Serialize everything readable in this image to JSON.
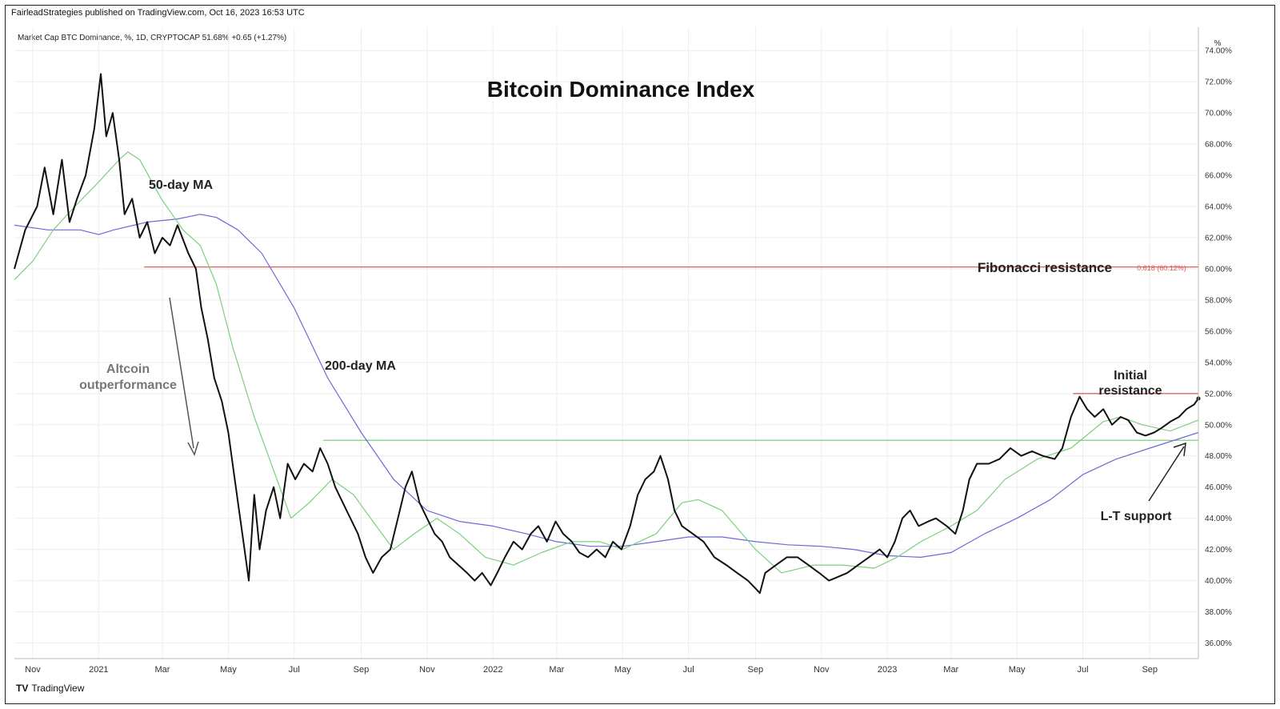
{
  "header": {
    "publisher": "FairleadStrategies published on TradingView.com, Oct 16, 2023 16:53 UTC",
    "legend": "Market Cap BTC Dominance, %, 1D, CRYPTOCAP  51.68%  +0.65 (+1.27%)",
    "unit_label": "%"
  },
  "footer": {
    "logo_text": "TV",
    "brand": "TradingView"
  },
  "colors": {
    "price": "#111111",
    "ma50": "#7ccf7c",
    "ma200": "#6a6ad8",
    "fib": "#e06060",
    "support": "#7ccf7c",
    "arrow": "#333333",
    "grid": "#eeeeee"
  },
  "chart_data": {
    "type": "line",
    "title": "Bitcoin Dominance Index",
    "xlabel": "",
    "ylabel": "",
    "x_range": [
      "2020-10-15",
      "2023-10-16"
    ],
    "ylim": [
      35,
      75.5
    ],
    "grid": true,
    "y_ticks": [
      "36.00%",
      "38.00%",
      "40.00%",
      "42.00%",
      "44.00%",
      "46.00%",
      "48.00%",
      "50.00%",
      "52.00%",
      "54.00%",
      "56.00%",
      "58.00%",
      "60.00%",
      "62.00%",
      "64.00%",
      "66.00%",
      "68.00%",
      "70.00%",
      "72.00%",
      "74.00%"
    ],
    "x_ticks": [
      {
        "label": "Nov",
        "date": "2020-11-01"
      },
      {
        "label": "2021",
        "date": "2021-01-01"
      },
      {
        "label": "Mar",
        "date": "2021-03-01"
      },
      {
        "label": "May",
        "date": "2021-05-01"
      },
      {
        "label": "Jul",
        "date": "2021-07-01"
      },
      {
        "label": "Sep",
        "date": "2021-09-01"
      },
      {
        "label": "Nov",
        "date": "2021-11-01"
      },
      {
        "label": "2022",
        "date": "2022-01-01"
      },
      {
        "label": "Mar",
        "date": "2022-03-01"
      },
      {
        "label": "May",
        "date": "2022-05-01"
      },
      {
        "label": "Jul",
        "date": "2022-07-01"
      },
      {
        "label": "Sep",
        "date": "2022-09-01"
      },
      {
        "label": "Nov",
        "date": "2022-11-01"
      },
      {
        "label": "2023",
        "date": "2023-01-01"
      },
      {
        "label": "Mar",
        "date": "2023-03-01"
      },
      {
        "label": "May",
        "date": "2023-05-01"
      },
      {
        "label": "Jul",
        "date": "2023-07-01"
      },
      {
        "label": "Sep",
        "date": "2023-09-01"
      }
    ],
    "series": [
      {
        "key": "price",
        "points": [
          [
            "2020-10-15",
            60.0
          ],
          [
            "2020-10-25",
            62.5
          ],
          [
            "2020-11-05",
            64.0
          ],
          [
            "2020-11-12",
            66.5
          ],
          [
            "2020-11-20",
            63.5
          ],
          [
            "2020-11-28",
            67.0
          ],
          [
            "2020-12-05",
            63.0
          ],
          [
            "2020-12-12",
            64.5
          ],
          [
            "2020-12-20",
            66.0
          ],
          [
            "2020-12-28",
            69.0
          ],
          [
            "2021-01-03",
            72.5
          ],
          [
            "2021-01-08",
            68.5
          ],
          [
            "2021-01-14",
            70.0
          ],
          [
            "2021-01-20",
            67.0
          ],
          [
            "2021-01-25",
            63.5
          ],
          [
            "2021-02-01",
            64.5
          ],
          [
            "2021-02-08",
            62.0
          ],
          [
            "2021-02-15",
            63.0
          ],
          [
            "2021-02-22",
            61.0
          ],
          [
            "2021-03-01",
            62.0
          ],
          [
            "2021-03-08",
            61.5
          ],
          [
            "2021-03-15",
            62.8
          ],
          [
            "2021-03-25",
            61.0
          ],
          [
            "2021-04-01",
            60.0
          ],
          [
            "2021-04-06",
            57.5
          ],
          [
            "2021-04-12",
            55.5
          ],
          [
            "2021-04-18",
            53.0
          ],
          [
            "2021-04-25",
            51.5
          ],
          [
            "2021-05-01",
            49.5
          ],
          [
            "2021-05-06",
            47.0
          ],
          [
            "2021-05-10",
            45.0
          ],
          [
            "2021-05-15",
            42.5
          ],
          [
            "2021-05-20",
            40.0
          ],
          [
            "2021-05-25",
            45.5
          ],
          [
            "2021-05-30",
            42.0
          ],
          [
            "2021-06-05",
            44.5
          ],
          [
            "2021-06-12",
            46.0
          ],
          [
            "2021-06-18",
            44.0
          ],
          [
            "2021-06-25",
            47.5
          ],
          [
            "2021-07-02",
            46.5
          ],
          [
            "2021-07-10",
            47.5
          ],
          [
            "2021-07-18",
            47.0
          ],
          [
            "2021-07-25",
            48.5
          ],
          [
            "2021-08-01",
            47.5
          ],
          [
            "2021-08-08",
            46.0
          ],
          [
            "2021-08-15",
            45.0
          ],
          [
            "2021-08-22",
            44.0
          ],
          [
            "2021-08-29",
            43.0
          ],
          [
            "2021-09-05",
            41.5
          ],
          [
            "2021-09-12",
            40.5
          ],
          [
            "2021-09-20",
            41.5
          ],
          [
            "2021-09-28",
            42.0
          ],
          [
            "2021-10-05",
            44.0
          ],
          [
            "2021-10-12",
            46.0
          ],
          [
            "2021-10-18",
            47.0
          ],
          [
            "2021-10-25",
            45.0
          ],
          [
            "2021-11-01",
            44.0
          ],
          [
            "2021-11-08",
            43.0
          ],
          [
            "2021-11-15",
            42.5
          ],
          [
            "2021-11-22",
            41.5
          ],
          [
            "2021-11-30",
            41.0
          ],
          [
            "2021-12-08",
            40.5
          ],
          [
            "2021-12-15",
            40.0
          ],
          [
            "2021-12-22",
            40.5
          ],
          [
            "2021-12-30",
            39.7
          ],
          [
            "2022-01-05",
            40.5
          ],
          [
            "2022-01-12",
            41.5
          ],
          [
            "2022-01-20",
            42.5
          ],
          [
            "2022-01-28",
            42.0
          ],
          [
            "2022-02-05",
            43.0
          ],
          [
            "2022-02-12",
            43.5
          ],
          [
            "2022-02-20",
            42.5
          ],
          [
            "2022-02-28",
            43.8
          ],
          [
            "2022-03-07",
            43.0
          ],
          [
            "2022-03-15",
            42.5
          ],
          [
            "2022-03-22",
            41.8
          ],
          [
            "2022-03-30",
            41.5
          ],
          [
            "2022-04-07",
            42.0
          ],
          [
            "2022-04-15",
            41.5
          ],
          [
            "2022-04-22",
            42.5
          ],
          [
            "2022-04-30",
            42.0
          ],
          [
            "2022-05-08",
            43.5
          ],
          [
            "2022-05-15",
            45.5
          ],
          [
            "2022-05-22",
            46.5
          ],
          [
            "2022-05-30",
            47.0
          ],
          [
            "2022-06-05",
            48.0
          ],
          [
            "2022-06-12",
            46.5
          ],
          [
            "2022-06-18",
            44.5
          ],
          [
            "2022-06-25",
            43.5
          ],
          [
            "2022-07-05",
            43.0
          ],
          [
            "2022-07-15",
            42.5
          ],
          [
            "2022-07-25",
            41.5
          ],
          [
            "2022-08-05",
            41.0
          ],
          [
            "2022-08-15",
            40.5
          ],
          [
            "2022-08-25",
            40.0
          ],
          [
            "2022-09-01",
            39.5
          ],
          [
            "2022-09-05",
            39.2
          ],
          [
            "2022-09-10",
            40.5
          ],
          [
            "2022-09-20",
            41.0
          ],
          [
            "2022-09-30",
            41.5
          ],
          [
            "2022-10-10",
            41.5
          ],
          [
            "2022-10-20",
            41.0
          ],
          [
            "2022-10-30",
            40.5
          ],
          [
            "2022-11-08",
            40.0
          ],
          [
            "2022-11-15",
            40.2
          ],
          [
            "2022-11-25",
            40.5
          ],
          [
            "2022-12-05",
            41.0
          ],
          [
            "2022-12-15",
            41.5
          ],
          [
            "2022-12-25",
            42.0
          ],
          [
            "2023-01-01",
            41.5
          ],
          [
            "2023-01-08",
            42.5
          ],
          [
            "2023-01-15",
            44.0
          ],
          [
            "2023-01-22",
            44.5
          ],
          [
            "2023-01-30",
            43.5
          ],
          [
            "2023-02-08",
            43.8
          ],
          [
            "2023-02-15",
            44.0
          ],
          [
            "2023-02-25",
            43.5
          ],
          [
            "2023-03-05",
            43.0
          ],
          [
            "2023-03-12",
            44.5
          ],
          [
            "2023-03-18",
            46.5
          ],
          [
            "2023-03-25",
            47.5
          ],
          [
            "2023-04-05",
            47.5
          ],
          [
            "2023-04-15",
            47.8
          ],
          [
            "2023-04-25",
            48.5
          ],
          [
            "2023-05-05",
            48.0
          ],
          [
            "2023-05-15",
            48.3
          ],
          [
            "2023-05-25",
            48.0
          ],
          [
            "2023-06-05",
            47.8
          ],
          [
            "2023-06-12",
            48.5
          ],
          [
            "2023-06-20",
            50.5
          ],
          [
            "2023-06-28",
            51.8
          ],
          [
            "2023-07-05",
            51.0
          ],
          [
            "2023-07-12",
            50.5
          ],
          [
            "2023-07-20",
            51.0
          ],
          [
            "2023-07-28",
            50.0
          ],
          [
            "2023-08-05",
            50.5
          ],
          [
            "2023-08-12",
            50.3
          ],
          [
            "2023-08-20",
            49.5
          ],
          [
            "2023-08-28",
            49.3
          ],
          [
            "2023-09-05",
            49.5
          ],
          [
            "2023-09-12",
            49.8
          ],
          [
            "2023-09-20",
            50.2
          ],
          [
            "2023-09-28",
            50.5
          ],
          [
            "2023-10-05",
            51.0
          ],
          [
            "2023-10-12",
            51.3
          ],
          [
            "2023-10-16",
            51.68
          ]
        ]
      },
      {
        "key": "ma50",
        "points": [
          [
            "2020-10-15",
            59.3
          ],
          [
            "2020-11-01",
            60.5
          ],
          [
            "2020-11-20",
            62.5
          ],
          [
            "2020-12-10",
            64.0
          ],
          [
            "2020-12-31",
            65.5
          ],
          [
            "2021-01-20",
            67.0
          ],
          [
            "2021-01-28",
            67.5
          ],
          [
            "2021-02-08",
            67.0
          ],
          [
            "2021-02-28",
            64.5
          ],
          [
            "2021-03-20",
            62.5
          ],
          [
            "2021-04-05",
            61.5
          ],
          [
            "2021-04-20",
            59.0
          ],
          [
            "2021-05-05",
            55.0
          ],
          [
            "2021-05-25",
            50.5
          ],
          [
            "2021-06-15",
            46.5
          ],
          [
            "2021-06-28",
            44.0
          ],
          [
            "2021-07-15",
            45.0
          ],
          [
            "2021-08-05",
            46.5
          ],
          [
            "2021-08-25",
            45.5
          ],
          [
            "2021-09-15",
            43.5
          ],
          [
            "2021-10-01",
            42.0
          ],
          [
            "2021-10-20",
            43.0
          ],
          [
            "2021-11-10",
            44.0
          ],
          [
            "2021-12-01",
            43.0
          ],
          [
            "2021-12-25",
            41.5
          ],
          [
            "2022-01-20",
            41.0
          ],
          [
            "2022-02-15",
            41.8
          ],
          [
            "2022-03-15",
            42.5
          ],
          [
            "2022-04-10",
            42.5
          ],
          [
            "2022-05-01",
            42.0
          ],
          [
            "2022-06-01",
            43.0
          ],
          [
            "2022-06-25",
            45.0
          ],
          [
            "2022-07-10",
            45.2
          ],
          [
            "2022-08-01",
            44.5
          ],
          [
            "2022-09-01",
            42.0
          ],
          [
            "2022-09-25",
            40.5
          ],
          [
            "2022-10-25",
            41.0
          ],
          [
            "2022-11-20",
            41.0
          ],
          [
            "2022-12-20",
            40.8
          ],
          [
            "2023-01-10",
            41.5
          ],
          [
            "2023-02-01",
            42.5
          ],
          [
            "2023-03-01",
            43.5
          ],
          [
            "2023-03-25",
            44.5
          ],
          [
            "2023-04-20",
            46.5
          ],
          [
            "2023-05-20",
            47.8
          ],
          [
            "2023-06-20",
            48.5
          ],
          [
            "2023-07-20",
            50.2
          ],
          [
            "2023-08-05",
            50.5
          ],
          [
            "2023-08-25",
            50.0
          ],
          [
            "2023-09-20",
            49.6
          ],
          [
            "2023-10-16",
            50.3
          ]
        ]
      },
      {
        "key": "ma200",
        "points": [
          [
            "2020-10-15",
            62.8
          ],
          [
            "2020-11-15",
            62.5
          ],
          [
            "2020-12-15",
            62.5
          ],
          [
            "2021-01-01",
            62.2
          ],
          [
            "2021-01-15",
            62.5
          ],
          [
            "2021-02-15",
            63.0
          ],
          [
            "2021-03-15",
            63.2
          ],
          [
            "2021-04-05",
            63.5
          ],
          [
            "2021-04-20",
            63.3
          ],
          [
            "2021-05-10",
            62.5
          ],
          [
            "2021-06-01",
            61.0
          ],
          [
            "2021-07-01",
            57.5
          ],
          [
            "2021-08-01",
            53.0
          ],
          [
            "2021-09-01",
            49.5
          ],
          [
            "2021-10-01",
            46.5
          ],
          [
            "2021-11-01",
            44.5
          ],
          [
            "2021-12-01",
            43.8
          ],
          [
            "2022-01-01",
            43.5
          ],
          [
            "2022-02-01",
            43.0
          ],
          [
            "2022-03-01",
            42.5
          ],
          [
            "2022-04-01",
            42.2
          ],
          [
            "2022-05-01",
            42.2
          ],
          [
            "2022-06-01",
            42.5
          ],
          [
            "2022-07-01",
            42.8
          ],
          [
            "2022-08-01",
            42.8
          ],
          [
            "2022-09-01",
            42.5
          ],
          [
            "2022-10-01",
            42.3
          ],
          [
            "2022-11-01",
            42.2
          ],
          [
            "2022-12-01",
            42.0
          ],
          [
            "2023-01-01",
            41.6
          ],
          [
            "2023-02-01",
            41.5
          ],
          [
            "2023-03-01",
            41.8
          ],
          [
            "2023-04-01",
            43.0
          ],
          [
            "2023-05-01",
            44.0
          ],
          [
            "2023-06-01",
            45.2
          ],
          [
            "2023-07-01",
            46.8
          ],
          [
            "2023-08-01",
            47.8
          ],
          [
            "2023-09-01",
            48.5
          ],
          [
            "2023-10-16",
            49.5
          ]
        ]
      }
    ],
    "horizontal_lines": [
      {
        "key": "fib",
        "value": 60.12,
        "from": "2021-02-12",
        "to": "2023-10-22"
      },
      {
        "key": "res",
        "value": 52.0,
        "from": "2023-06-22",
        "to": "2023-10-22"
      },
      {
        "key": "sup",
        "value": 49.0,
        "from": "2021-07-28",
        "to": "2023-10-22"
      }
    ],
    "fib_label": "0.618 (60.12%)",
    "annotations": {
      "title": "Bitcoin Dominance Index",
      "ma50": "50-day MA",
      "ma200": "200-day MA",
      "fib": "Fibonacci resistance",
      "altcoin_1": "Altcoin",
      "altcoin_2": "outperformance",
      "initial_1": "Initial",
      "initial_2": "resistance",
      "lt_support": "L-T support"
    }
  }
}
